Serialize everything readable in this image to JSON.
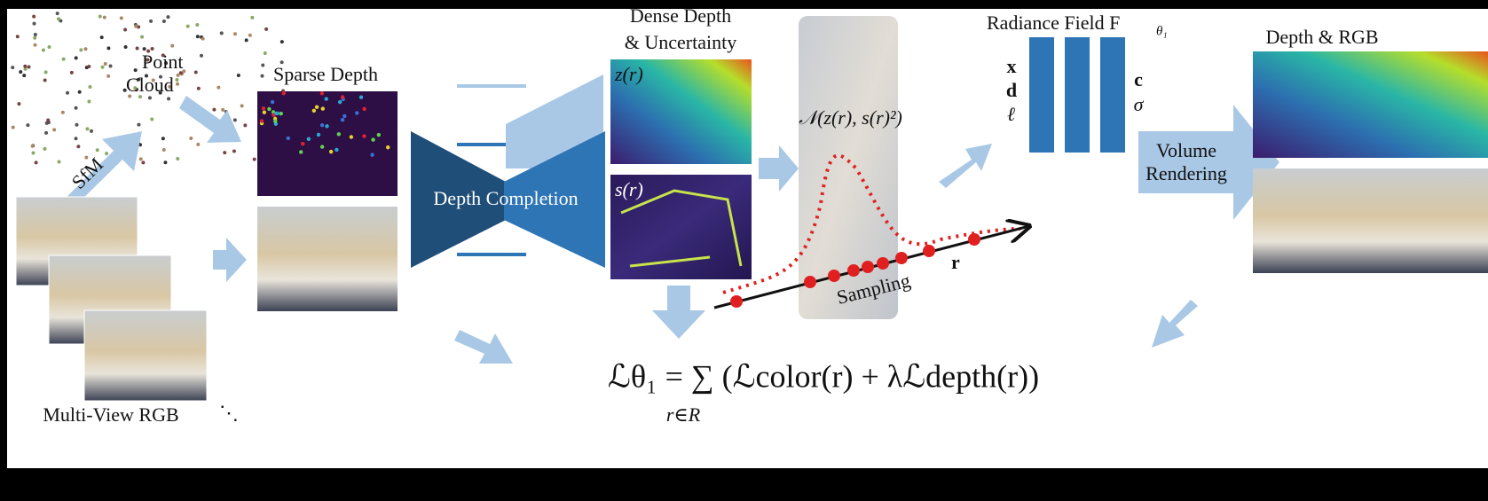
{
  "point_cloud": {
    "lines": [
      "Point",
      "Cloud"
    ]
  },
  "sfm": "SfM",
  "multi_view": {
    "label": "Multi-View RGB",
    "ellipsis": "⋱"
  },
  "sparse_depth": "Sparse Depth",
  "depth_completion": "Depth Completion",
  "dense_depth": {
    "lines": [
      "Dense Depth",
      "& Uncertainty"
    ],
    "depth_label": "z(r)",
    "uncertainty_label": "s(r)"
  },
  "sampling": {
    "distribution": "𝒩(z(r), s(r)²)",
    "label": "Sampling",
    "ray": "r"
  },
  "radiance_field": {
    "title": "Radiance Field F",
    "subscript": "θ₁",
    "inputs": [
      "x",
      "d",
      "ℓ"
    ],
    "outputs": [
      "c",
      "σ"
    ]
  },
  "volume_rendering": {
    "lines": [
      "Volume",
      "Rendering"
    ]
  },
  "output": "Depth & RGB",
  "loss": {
    "formula": "ℒθ₁ = ∑ (ℒcolor(r) + λℒdepth(r))",
    "sum_index": "r∈R"
  }
}
